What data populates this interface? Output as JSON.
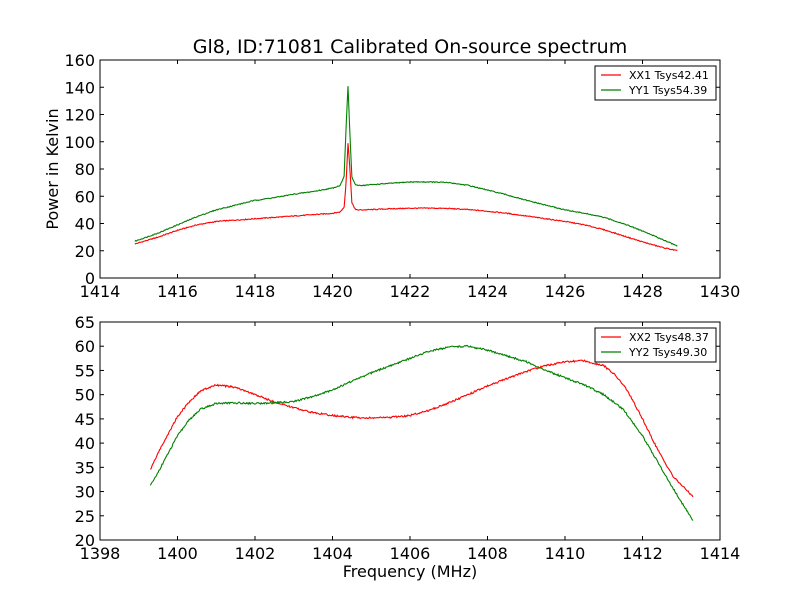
{
  "title": "Gl8, ID:71081 Calibrated On-source spectrum",
  "colors": {
    "xx": "#ff0000",
    "yy": "#008000"
  },
  "chart_data": [
    {
      "type": "line",
      "title": "Gl8, ID:71081 Calibrated On-source spectrum",
      "xlabel": "",
      "ylabel": "Power in Kelvin",
      "xlim": [
        1414,
        1430
      ],
      "ylim": [
        0,
        160
      ],
      "xticks": [
        1414,
        1416,
        1418,
        1420,
        1422,
        1424,
        1426,
        1428,
        1430
      ],
      "yticks": [
        0,
        20,
        40,
        60,
        80,
        100,
        120,
        140,
        160
      ],
      "grid": false,
      "legend": "top-right",
      "series": [
        {
          "name": "XX1 Tsys42.41",
          "color": "#ff0000",
          "x": [
            1414.9,
            1415.5,
            1416,
            1416.5,
            1417,
            1417.5,
            1418,
            1418.5,
            1419,
            1419.5,
            1420,
            1420.2,
            1420.3,
            1420.35,
            1420.4,
            1420.45,
            1420.5,
            1420.6,
            1420.8,
            1421,
            1421.5,
            1422,
            1422.5,
            1423,
            1423.5,
            1424,
            1424.5,
            1425,
            1425.5,
            1426,
            1426.5,
            1427,
            1427.5,
            1428,
            1428.5,
            1428.9
          ],
          "y": [
            25,
            30,
            35,
            39,
            41.5,
            42.5,
            43.5,
            44.5,
            45.5,
            46.5,
            47.5,
            48.5,
            52,
            70,
            99,
            80,
            55,
            50,
            50,
            50.2,
            50.8,
            51.2,
            51.3,
            51,
            50.2,
            49,
            47.5,
            45.5,
            43.5,
            41.5,
            39,
            35.5,
            31,
            26.5,
            22.5,
            20
          ]
        },
        {
          "name": "YY1 Tsys54.39",
          "color": "#008000",
          "x": [
            1414.9,
            1415.5,
            1416,
            1416.5,
            1417,
            1417.5,
            1418,
            1418.5,
            1419,
            1419.5,
            1420,
            1420.2,
            1420.3,
            1420.35,
            1420.4,
            1420.45,
            1420.5,
            1420.6,
            1420.8,
            1421,
            1421.5,
            1422,
            1422.5,
            1423,
            1423.5,
            1424,
            1424.5,
            1425,
            1425.5,
            1426,
            1426.5,
            1427,
            1427.5,
            1428,
            1428.5,
            1428.9
          ],
          "y": [
            27,
            33,
            39,
            45,
            50,
            53.5,
            57,
            59,
            61.5,
            63.5,
            66,
            68,
            75,
            110,
            141,
            105,
            74,
            68,
            68,
            68.5,
            69.5,
            70.5,
            70.5,
            70,
            68,
            64.5,
            61,
            57,
            53.5,
            50,
            47.5,
            44.5,
            40,
            34.5,
            28.5,
            23.5
          ]
        }
      ]
    },
    {
      "type": "line",
      "title": "",
      "xlabel": "Frequency (MHz)",
      "ylabel": "",
      "xlim": [
        1398,
        1414
      ],
      "ylim": [
        20,
        65
      ],
      "xticks": [
        1398,
        1400,
        1402,
        1404,
        1406,
        1408,
        1410,
        1412,
        1414
      ],
      "yticks": [
        20,
        25,
        30,
        35,
        40,
        45,
        50,
        55,
        60,
        65
      ],
      "grid": false,
      "legend": "top-right",
      "series": [
        {
          "name": "XX2 Tsys48.37",
          "color": "#ff0000",
          "x": [
            1399.3,
            1399.5,
            1399.8,
            1400,
            1400.3,
            1400.6,
            1401,
            1401.5,
            1402,
            1402.5,
            1403,
            1403.5,
            1404,
            1404.5,
            1405,
            1405.5,
            1406,
            1406.5,
            1407,
            1407.5,
            1408,
            1408.5,
            1409,
            1409.5,
            1410,
            1410.5,
            1411,
            1411.3,
            1411.6,
            1412,
            1412.4,
            1412.8,
            1413.3
          ],
          "y": [
            34.5,
            38,
            42.5,
            45.5,
            48.5,
            50.8,
            52,
            51.5,
            50,
            48.5,
            47.3,
            46.3,
            45.7,
            45.3,
            45.2,
            45.3,
            45.7,
            46.8,
            48.3,
            50,
            51.8,
            53.3,
            54.8,
            56,
            56.8,
            57,
            56,
            54,
            51,
            45,
            38.5,
            33,
            29
          ]
        },
        {
          "name": "YY2 Tsys49.30",
          "color": "#008000",
          "x": [
            1399.3,
            1399.5,
            1399.8,
            1400,
            1400.3,
            1400.6,
            1401,
            1401.5,
            1402,
            1402.5,
            1403,
            1403.5,
            1404,
            1404.5,
            1405,
            1405.5,
            1406,
            1406.5,
            1407,
            1407.5,
            1408,
            1408.5,
            1409,
            1409.5,
            1410,
            1410.5,
            1411,
            1411.5,
            1412,
            1412.4,
            1412.8,
            1413.3
          ],
          "y": [
            31.2,
            34,
            38.5,
            41.5,
            44.8,
            47,
            48.2,
            48.3,
            48.2,
            48.3,
            48.6,
            49.6,
            51,
            52.8,
            54.5,
            56,
            57.5,
            59,
            59.8,
            60,
            59.2,
            58,
            56.8,
            55,
            53.5,
            52,
            50,
            47,
            41.5,
            36,
            30.5,
            24
          ]
        }
      ]
    }
  ]
}
